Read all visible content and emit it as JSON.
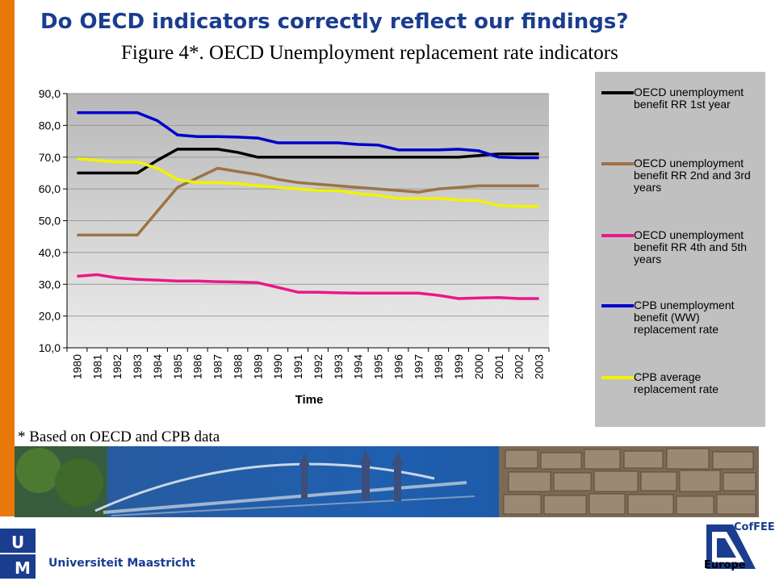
{
  "slide": {
    "title": "Do OECD indicators correctly reflect our findings?",
    "footnote": "* Based on OECD and CPB data",
    "university": "Universiteit Maastricht",
    "logo_um_letters": "UM",
    "logo_cofee_top": "CofFEE",
    "logo_cofee_bottom": "Europe",
    "accent_color": "#e8780a",
    "title_color": "#1a3d8f"
  },
  "chart_data": {
    "type": "line",
    "title": "Figure 4*. OECD Unemployment replacement rate indicators",
    "xlabel": "Time",
    "ylabel": "",
    "ylim": [
      10,
      90
    ],
    "yticks": [
      "10,0",
      "20,0",
      "30,0",
      "40,0",
      "50,0",
      "60,0",
      "70,0",
      "80,0",
      "90,0"
    ],
    "grid": "horizontal",
    "legend_position": "right",
    "categories": [
      "1980",
      "1981",
      "1982",
      "1983",
      "1984",
      "1985",
      "1986",
      "1987",
      "1988",
      "1989",
      "1990",
      "1991",
      "1992",
      "1993",
      "1994",
      "1995",
      "1996",
      "1997",
      "1998",
      "1999",
      "2000",
      "2001",
      "2002",
      "2003"
    ],
    "series": [
      {
        "name": "OECD unemployment benefit RR 1st year",
        "color": "#000000",
        "values": [
          65,
          65,
          65,
          65,
          69,
          72.5,
          72.5,
          72.5,
          71.5,
          70,
          70,
          70,
          70,
          70,
          70,
          70,
          70,
          70,
          70,
          70,
          70.5,
          71,
          71,
          71
        ]
      },
      {
        "name": "OECD unemployment benefit RR 2nd and 3rd years",
        "color": "#9c7444",
        "values": [
          45.5,
          45.5,
          45.5,
          45.5,
          53,
          60.5,
          63.5,
          66.5,
          65.5,
          64.5,
          63,
          62,
          61.5,
          61,
          60.5,
          60,
          59.5,
          59,
          60,
          60.5,
          61,
          61,
          61,
          61
        ]
      },
      {
        "name": "OECD unemployment benefit RR 4th and 5th years",
        "color": "#e8198a",
        "values": [
          32.5,
          33,
          32,
          31.5,
          31.3,
          31,
          31,
          30.8,
          30.7,
          30.5,
          29,
          27.5,
          27.5,
          27.3,
          27.2,
          27.2,
          27.2,
          27.2,
          26.5,
          25.5,
          25.7,
          25.8,
          25.5,
          25.5
        ]
      },
      {
        "name": "CPB unemployment benefit (WW) replacement rate",
        "color": "#0000cc",
        "values": [
          84,
          84,
          84,
          84,
          81.5,
          77,
          76.5,
          76.5,
          76.3,
          76,
          74.5,
          74.5,
          74.5,
          74.5,
          74,
          73.8,
          72.3,
          72.3,
          72.3,
          72.5,
          72,
          70,
          69.8,
          69.8
        ]
      },
      {
        "name": "CPB average replacement rate",
        "color": "#f2f200",
        "values": [
          69.5,
          69,
          68.5,
          68.5,
          66.5,
          63,
          62,
          62,
          61.7,
          61,
          60.5,
          60,
          59.5,
          59.5,
          58.5,
          58,
          57,
          57,
          57,
          56.5,
          56.3,
          54.8,
          54.5,
          54.5
        ]
      }
    ]
  },
  "icons": {
    "photo_band": "bridge-photo-band",
    "um_logo": "um-logo-icon",
    "cofee_logo": "cofee-logo-icon"
  }
}
